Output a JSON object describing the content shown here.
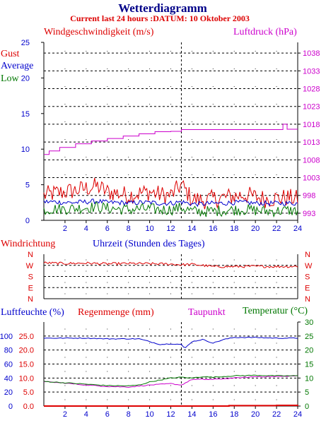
{
  "header": {
    "title": "Wetterdiagramm",
    "subtitle": "Current last 24 hours :DATUM: 10 Oktober 2003"
  },
  "colors": {
    "red": "#dd0000",
    "blue": "#0000cc",
    "green": "#007700",
    "magenta": "#cc00cc",
    "black": "#000000"
  },
  "chart_data": [
    {
      "type": "line",
      "panel": "wind",
      "title": "Windgeschwindigkeit (m/s)",
      "right_title": "Luftdruck (hPa)",
      "left_ticks": [
        "0",
        "5",
        "10",
        "15",
        "20",
        "25"
      ],
      "right_ticks": [
        "993",
        "998",
        "1003",
        "1008",
        "1013",
        "1018",
        "1023",
        "1028",
        "1033",
        "1038"
      ],
      "x_ticks": [
        "2",
        "4",
        "6",
        "8",
        "10",
        "12",
        "14",
        "16",
        "18",
        "20",
        "22",
        "24"
      ],
      "xlim": [
        0,
        24
      ],
      "ylim": [
        0,
        25
      ],
      "y2lim": [
        991,
        1041
      ],
      "grid": true,
      "series": [
        {
          "name": "Gust",
          "color": "#dd0000",
          "x": [
            0,
            1,
            2,
            3,
            4,
            5,
            6,
            7,
            8,
            9,
            10,
            11,
            12,
            13,
            14,
            15,
            16,
            17,
            18,
            19,
            20,
            21,
            22,
            23,
            24
          ],
          "values": [
            3.5,
            3.8,
            4.0,
            4.2,
            4.5,
            4.8,
            4.0,
            3.8,
            3.5,
            3.8,
            4.0,
            3.6,
            3.5,
            5.0,
            3.0,
            2.8,
            3.0,
            3.2,
            3.4,
            3.6,
            3.3,
            3.0,
            3.1,
            3.2,
            3.0
          ]
        },
        {
          "name": "Average",
          "color": "#0000cc",
          "x": [
            0,
            1,
            2,
            3,
            4,
            5,
            6,
            7,
            8,
            9,
            10,
            11,
            12,
            13,
            14,
            15,
            16,
            17,
            18,
            19,
            20,
            21,
            22,
            23,
            24
          ],
          "values": [
            2.6,
            2.6,
            2.5,
            2.5,
            2.6,
            2.7,
            2.5,
            2.5,
            2.4,
            2.5,
            2.5,
            2.4,
            2.4,
            2.6,
            2.3,
            2.3,
            2.4,
            2.4,
            2.5,
            2.5,
            2.4,
            2.4,
            2.4,
            2.4,
            2.4
          ]
        },
        {
          "name": "Low",
          "color": "#007700",
          "x": [
            0,
            1,
            2,
            3,
            4,
            5,
            6,
            7,
            8,
            9,
            10,
            11,
            12,
            13,
            14,
            15,
            16,
            17,
            18,
            19,
            20,
            21,
            22,
            23,
            24
          ],
          "values": [
            1.5,
            1.6,
            1.6,
            1.7,
            1.8,
            1.9,
            1.7,
            1.6,
            1.5,
            1.6,
            1.6,
            1.5,
            1.5,
            1.8,
            1.3,
            1.2,
            1.3,
            1.4,
            1.5,
            1.5,
            1.4,
            1.3,
            1.3,
            1.4,
            1.3
          ]
        },
        {
          "name": "Luftdruck",
          "color": "#cc00cc",
          "axis": "right",
          "x": [
            0,
            0.5,
            1.5,
            3,
            4.5,
            6,
            7.5,
            9,
            10.5,
            12,
            13,
            14,
            16,
            18,
            20,
            22,
            22.6,
            23,
            24
          ],
          "values": [
            1009.5,
            1010.5,
            1011.5,
            1012.5,
            1013.3,
            1014.0,
            1014.7,
            1015.3,
            1015.9,
            1016.0,
            1016.5,
            1016.5,
            1016.5,
            1016.5,
            1016.5,
            1016.5,
            1018.0,
            1016.6,
            1016.6
          ]
        }
      ]
    },
    {
      "type": "line",
      "panel": "direction",
      "title": "Windrichtung",
      "xlabel": "Uhrzeit (Stunden des Tages)",
      "ticks": [
        "N",
        "W",
        "S",
        "E",
        "N"
      ],
      "xlim": [
        0,
        24
      ],
      "ylim": [
        0,
        360
      ],
      "grid": true,
      "series": [
        {
          "name": "Windrichtung",
          "color": "#dd0000",
          "x": [
            0,
            2,
            4,
            6,
            8,
            10,
            12,
            13,
            14,
            15,
            16,
            18,
            20,
            22,
            24
          ],
          "values": [
            290,
            285,
            288,
            282,
            285,
            283,
            280,
            275,
            278,
            270,
            260,
            260,
            262,
            260,
            262
          ]
        }
      ]
    },
    {
      "type": "line",
      "panel": "humidity",
      "title": "Luftfeuchte (%)",
      "title2": "Regenmenge (mm)",
      "title3": "Taupunkt",
      "right_title": "Temperatur (°C)",
      "left_ticks_humidity": [
        "0",
        "20",
        "40",
        "60",
        "80",
        "100"
      ],
      "left_ticks_rain": [
        "0.0",
        "5.0",
        "10.0",
        "15.0",
        "20.0",
        "25.0"
      ],
      "right_ticks": [
        "0",
        "5",
        "10",
        "15",
        "20",
        "25",
        "30"
      ],
      "x_ticks": [
        "2",
        "4",
        "6",
        "8",
        "10",
        "12",
        "14",
        "16",
        "18",
        "20",
        "22",
        "24"
      ],
      "xlim": [
        0,
        24
      ],
      "ylim": [
        0,
        120
      ],
      "y2lim": [
        0,
        30
      ],
      "grid": true,
      "series": [
        {
          "name": "Luftfeuchte",
          "color": "#0000cc",
          "x": [
            0,
            2,
            4,
            6,
            8,
            9,
            10,
            11,
            12,
            13,
            13.3,
            14,
            15,
            16,
            17,
            18,
            20,
            22,
            24
          ],
          "values": [
            97,
            97,
            97,
            96,
            96,
            96,
            92,
            88,
            89,
            88,
            82,
            92,
            95,
            90,
            95,
            98,
            98,
            97,
            97
          ]
        },
        {
          "name": "Regenmenge",
          "color": "#dd0000",
          "x": [
            0,
            16.5,
            17.5,
            20,
            22,
            23.5,
            24
          ],
          "values": [
            0,
            0,
            0.6,
            0.6,
            1.0,
            1.0,
            1.6
          ]
        },
        {
          "name": "Taupunkt",
          "color": "#cc00cc",
          "axis": "right",
          "x": [
            0,
            2,
            4,
            6,
            8,
            10,
            12,
            13,
            14,
            16,
            18,
            20,
            22,
            24
          ],
          "values": [
            8.7,
            8.2,
            7.5,
            7.0,
            6.8,
            7.5,
            8.0,
            7.5,
            9.5,
            9.5,
            10,
            10.5,
            10.5,
            10.8
          ]
        },
        {
          "name": "Temperatur",
          "color": "#007700",
          "axis": "right",
          "x": [
            0,
            2,
            4,
            6,
            8,
            9,
            10,
            12,
            13,
            14,
            15,
            16,
            18,
            20,
            22,
            24
          ],
          "values": [
            8.8,
            8.3,
            7.8,
            7.3,
            7.2,
            7.5,
            8.6,
            10.0,
            10.3,
            10.0,
            10.5,
            10.3,
            10.8,
            11.0,
            10.8,
            10.8
          ]
        }
      ]
    }
  ],
  "labels": {
    "gust": "Gust",
    "average": "Average",
    "low": "Low"
  }
}
